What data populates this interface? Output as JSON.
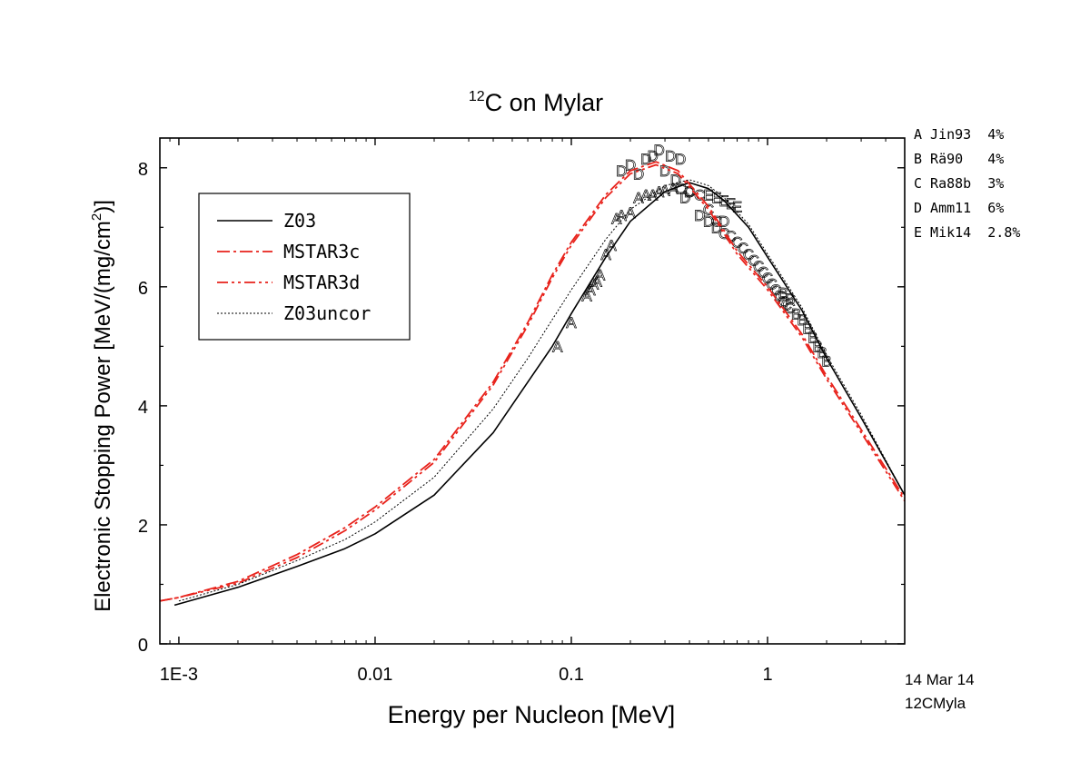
{
  "chart_data": {
    "type": "line",
    "title": "C on Mylar",
    "title_superscript": "12",
    "xlabel": "Energy per Nucleon [MeV]",
    "ylabel": "Electronic Stopping Power [MeV/(mg/cm",
    "ylabel_superscript": "2",
    "ylabel_suffix": ")]",
    "x_scale": "log",
    "xlim": [
      0.0008,
      5
    ],
    "ylim": [
      0,
      8.5
    ],
    "x_ticks": [
      0.001,
      0.01,
      0.1,
      1
    ],
    "x_tick_labels": [
      "1E-3",
      "0.01",
      "0.1",
      "1"
    ],
    "y_ticks": [
      0,
      2,
      4,
      6,
      8
    ],
    "y_tick_labels": [
      "0",
      "2",
      "4",
      "6",
      "8"
    ],
    "grid": false,
    "legend_position": "top-left",
    "series": [
      {
        "name": "Z03",
        "color": "#000000",
        "style": "solid",
        "x": [
          0.00095,
          0.002,
          0.004,
          0.007,
          0.01,
          0.02,
          0.04,
          0.06,
          0.08,
          0.1,
          0.15,
          0.2,
          0.3,
          0.4,
          0.5,
          0.6,
          0.8,
          1,
          1.5,
          2,
          3,
          5
        ],
        "y": [
          0.65,
          0.95,
          1.3,
          1.6,
          1.85,
          2.5,
          3.55,
          4.4,
          5.0,
          5.55,
          6.5,
          7.1,
          7.6,
          7.75,
          7.65,
          7.45,
          7.0,
          6.5,
          5.6,
          4.8,
          3.8,
          2.5
        ]
      },
      {
        "name": "MSTAR3c",
        "color": "#e8221b",
        "style": "dashdot",
        "x": [
          0.0008,
          0.001,
          0.002,
          0.004,
          0.007,
          0.01,
          0.02,
          0.04,
          0.06,
          0.08,
          0.1,
          0.15,
          0.2,
          0.27,
          0.35,
          0.5,
          0.7,
          1,
          1.5,
          2,
          3,
          5
        ],
        "y": [
          0.72,
          0.78,
          1.05,
          1.5,
          1.95,
          2.3,
          3.1,
          4.4,
          5.4,
          6.2,
          6.75,
          7.55,
          7.95,
          8.1,
          7.95,
          7.35,
          6.6,
          6.0,
          5.2,
          4.5,
          3.6,
          2.45
        ]
      },
      {
        "name": "MSTAR3d",
        "color": "#e8221b",
        "style": "dashdotdot",
        "x": [
          0.0008,
          0.001,
          0.002,
          0.004,
          0.007,
          0.01,
          0.02,
          0.04,
          0.06,
          0.08,
          0.1,
          0.15,
          0.2,
          0.27,
          0.35,
          0.5,
          0.7,
          1,
          1.5,
          2,
          3,
          5
        ],
        "y": [
          0.72,
          0.78,
          1.02,
          1.45,
          1.9,
          2.25,
          3.05,
          4.35,
          5.35,
          6.15,
          6.7,
          7.5,
          7.9,
          8.05,
          7.9,
          7.3,
          6.55,
          5.95,
          5.15,
          4.45,
          3.55,
          2.4
        ]
      },
      {
        "name": "Z03uncor",
        "color": "#000000",
        "style": "dotted",
        "x": [
          0.001,
          0.002,
          0.004,
          0.007,
          0.01,
          0.02,
          0.04,
          0.06,
          0.08,
          0.1,
          0.15,
          0.2,
          0.3,
          0.4,
          0.5,
          0.6,
          0.8,
          1,
          1.5,
          2,
          3,
          5
        ],
        "y": [
          0.72,
          1.0,
          1.4,
          1.75,
          2.05,
          2.8,
          3.95,
          4.8,
          5.45,
          5.95,
          6.8,
          7.3,
          7.7,
          7.8,
          7.7,
          7.5,
          7.05,
          6.55,
          5.65,
          4.85,
          3.85,
          2.5
        ]
      }
    ],
    "experimental_data": [
      {
        "code": "A",
        "label": "Jin93  4%",
        "x": [
          0.085,
          0.1,
          0.12,
          0.125,
          0.13,
          0.135,
          0.14,
          0.15,
          0.16,
          0.17,
          0.18,
          0.2,
          0.22,
          0.24,
          0.26,
          0.28,
          0.3,
          0.33
        ],
        "y": [
          5.0,
          5.4,
          5.85,
          5.95,
          6.05,
          6.1,
          6.2,
          6.55,
          6.7,
          7.15,
          7.2,
          7.25,
          7.5,
          7.55,
          7.55,
          7.6,
          7.62,
          7.65
        ]
      },
      {
        "code": "B",
        "label": "Rä90   4%",
        "x": [
          1.2,
          1.3,
          1.4,
          1.5,
          1.6,
          1.7,
          1.8,
          1.9,
          2.0
        ],
        "y": [
          5.9,
          5.8,
          5.55,
          5.45,
          5.3,
          5.15,
          5.0,
          4.9,
          4.75
        ]
      },
      {
        "code": "C",
        "label": "Ra88b  3%",
        "x": [
          0.36,
          0.4,
          0.45,
          0.5,
          0.55,
          0.6,
          0.65,
          0.7,
          0.75,
          0.8,
          0.85,
          0.9,
          0.95,
          1.0,
          1.05,
          1.1,
          1.15,
          1.2,
          1.25,
          1.3
        ],
        "y": [
          7.65,
          7.6,
          7.55,
          7.3,
          7.1,
          6.9,
          6.85,
          6.75,
          6.65,
          6.55,
          6.45,
          6.35,
          6.25,
          6.15,
          6.05,
          5.95,
          5.85,
          5.75,
          5.7,
          5.65
        ]
      },
      {
        "code": "D",
        "label": "Amm11  6%",
        "x": [
          0.18,
          0.2,
          0.22,
          0.24,
          0.26,
          0.28,
          0.3,
          0.32,
          0.34,
          0.36,
          0.38,
          0.4,
          0.45,
          0.5,
          0.55,
          0.6
        ],
        "y": [
          7.95,
          8.05,
          7.9,
          8.15,
          8.2,
          8.3,
          7.95,
          8.2,
          7.8,
          8.15,
          7.5,
          7.6,
          7.2,
          7.1,
          7.0,
          7.1
        ]
      },
      {
        "code": "E",
        "label": "Mik14  2.8%",
        "x": [
          0.5,
          0.55,
          0.6,
          0.65,
          0.7
        ],
        "y": [
          7.55,
          7.5,
          7.45,
          7.4,
          7.35
        ]
      }
    ],
    "annotations": [
      "14 Mar 14",
      "12CMyla"
    ]
  }
}
